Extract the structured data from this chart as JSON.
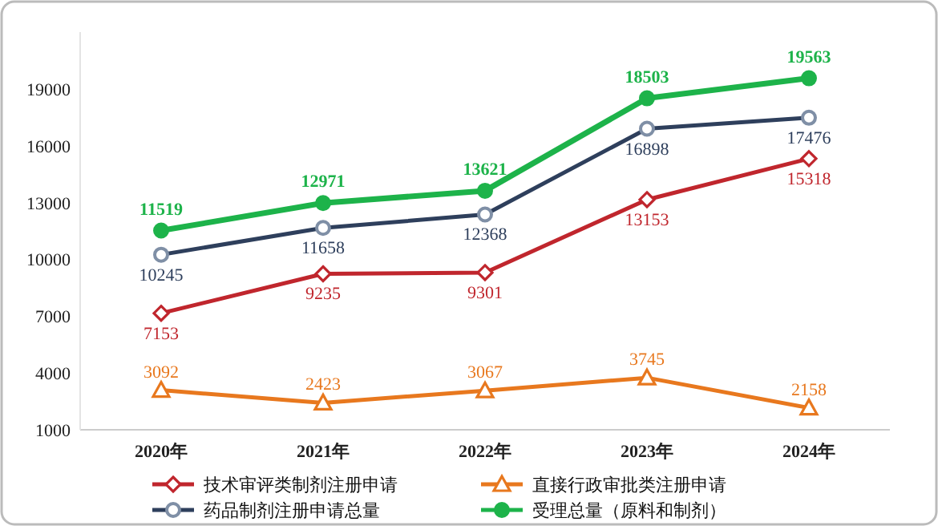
{
  "chart_data": {
    "type": "line",
    "categories": [
      "2020年",
      "2021年",
      "2022年",
      "2023年",
      "2024年"
    ],
    "series": [
      {
        "name": "技术审评类制剂注册申请",
        "color": "#c0262d",
        "marker": "diamond",
        "values": [
          7153,
          9235,
          9301,
          13153,
          15318
        ]
      },
      {
        "name": "直接行政审批类注册申请",
        "color": "#e8781e",
        "marker": "triangle",
        "values": [
          3092,
          2423,
          3067,
          3745,
          2158
        ]
      },
      {
        "name": "药品制剂注册申请总量",
        "color": "#2e3f5c",
        "marker": "circle",
        "values": [
          10245,
          11658,
          12368,
          16898,
          17476
        ]
      },
      {
        "name": "受理总量（原料和制剂）",
        "color": "#1db34a",
        "marker": "circle",
        "values": [
          11519,
          12971,
          13621,
          18503,
          19563
        ]
      }
    ],
    "ylim": [
      1000,
      22000
    ],
    "yticks": [
      1000,
      4000,
      7000,
      10000,
      13000,
      16000,
      19000
    ],
    "data_labels": true,
    "legend": "bottom",
    "grid": false
  }
}
